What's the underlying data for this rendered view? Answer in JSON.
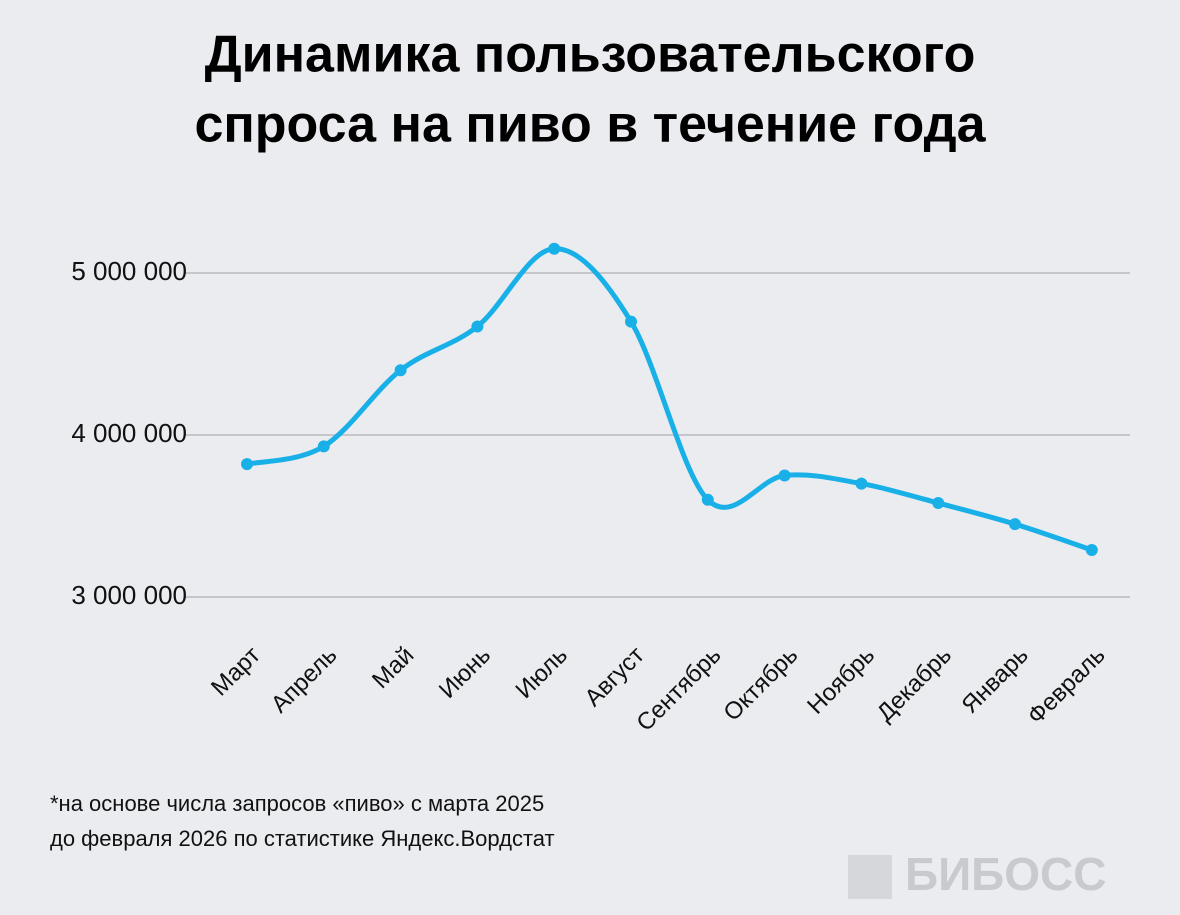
{
  "chart_data": {
    "type": "line",
    "title": [
      "Динамика пользовательского",
      "спроса на пиво в течение года"
    ],
    "categories": [
      "Март",
      "Апрель",
      "Май",
      "Июнь",
      "Июль",
      "Август",
      "Сентябрь",
      "Октябрь",
      "Ноябрь",
      "Декабрь",
      "Январь",
      "Февраль"
    ],
    "values": [
      3820000,
      3930000,
      4400000,
      4670000,
      5150000,
      4700000,
      3600000,
      3750000,
      3700000,
      3580000,
      3450000,
      3290000
    ],
    "color": "#19b0e8",
    "ylim": [
      2700000,
      5300000
    ],
    "yticks": [
      {
        "value": 3000000,
        "label": "3 000 000"
      },
      {
        "value": 4000000,
        "label": "4 000 000"
      },
      {
        "value": 5000000,
        "label": "5 000 000"
      }
    ],
    "grid": true,
    "footnote": [
      "*на основе числа запросов «пиво» с марта 2025",
      "до февраля 2026 по статистике Яндекс.Вордстат"
    ],
    "brand": "БИБОСС"
  }
}
